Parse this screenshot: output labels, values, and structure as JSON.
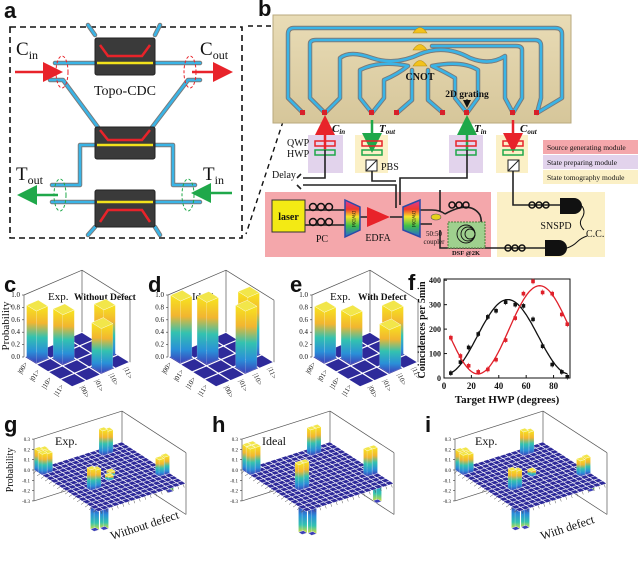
{
  "panels": {
    "a": {
      "label": "a",
      "device_label": "Topo-CDC",
      "c_in": {
        "main": "C",
        "sub": "in"
      },
      "c_out": {
        "main": "C",
        "sub": "out"
      },
      "t_out": {
        "main": "T",
        "sub": "out"
      },
      "t_in": {
        "main": "T",
        "sub": "in"
      },
      "colors": {
        "control": "#e8232a",
        "target": "#1fa84a",
        "waveguide": "#3ab4e6"
      }
    },
    "b": {
      "label": "b",
      "cnot_label": "CNOT",
      "grating_label": "2D grating",
      "ports": [
        {
          "main": "C",
          "sub": "in"
        },
        {
          "main": "T",
          "sub": "out"
        },
        {
          "main": "T",
          "sub": "in"
        },
        {
          "main": "C",
          "sub": "out"
        }
      ],
      "qwp": "QWP",
      "hwp": "HWP",
      "pbs": "PBS",
      "delay": "Delay",
      "laser": "laser",
      "pc": "PC",
      "dwdm": "DWDM",
      "edfa": "EDFA",
      "coupler": "50:50\ncoupler",
      "coupler_l1": "50:50",
      "coupler_l2": "coupler",
      "dsf": "DSF @2K",
      "snspd": "SNSPD",
      "cc": "C.C.",
      "legend": [
        {
          "label": "Source generating module",
          "color": "#f4a7ab"
        },
        {
          "label": "State preparing module",
          "color": "#e2d3ec"
        },
        {
          "label": "State tomography module",
          "color": "#fbf0c6"
        }
      ]
    },
    "c": {
      "label": "c",
      "tag": "Exp.",
      "subtitle": "Without Defect"
    },
    "d": {
      "label": "d",
      "tag": "Ideal"
    },
    "e": {
      "label": "e",
      "tag": "Exp.",
      "subtitle": "With Defect"
    },
    "f": {
      "label": "f"
    },
    "g": {
      "label": "g",
      "tag": "Exp.",
      "subtitle": "Without defect"
    },
    "h": {
      "label": "h",
      "tag": "Ideal"
    },
    "i": {
      "label": "i",
      "tag": "Exp.",
      "subtitle": "With defect"
    }
  },
  "chart_data": [
    {
      "panel": "c",
      "type": "bar3d",
      "zlabel": "Probability",
      "zlim": [
        0,
        1.0
      ],
      "zticks": [
        "0.0",
        "0.2",
        "0.4",
        "0.6",
        "0.8",
        "1.0"
      ],
      "row_labels": [
        "|00>",
        "|01>",
        "|10>",
        "|11>"
      ],
      "col_labels": [
        "|00>",
        "|01>",
        "|10>",
        "|11>"
      ],
      "values": [
        [
          0.84,
          0.02,
          0.01,
          0.02
        ],
        [
          0.02,
          0.8,
          0.02,
          0.01
        ],
        [
          0.01,
          0.02,
          0.03,
          0.8
        ],
        [
          0.02,
          0.01,
          0.72,
          0.03
        ]
      ]
    },
    {
      "panel": "d",
      "type": "bar3d",
      "zlim": [
        0,
        1.0
      ],
      "zticks": [
        "0.0",
        "0.2",
        "0.4",
        "0.6",
        "0.8",
        "1.0"
      ],
      "row_labels": [
        "|00>",
        "|01>",
        "|10>",
        "|11>"
      ],
      "col_labels": [
        "|00>",
        "|01>",
        "|10>",
        "|11>"
      ],
      "values": [
        [
          1,
          0,
          0,
          0
        ],
        [
          0,
          1,
          0,
          0
        ],
        [
          0,
          0,
          0,
          1
        ],
        [
          0,
          0,
          1,
          0
        ]
      ]
    },
    {
      "panel": "e",
      "type": "bar3d",
      "zlim": [
        0,
        1.0
      ],
      "zticks": [
        "0.0",
        "0.2",
        "0.4",
        "0.6",
        "0.8",
        "1.0"
      ],
      "row_labels": [
        "|00>",
        "|01>",
        "|10>",
        "|11>"
      ],
      "col_labels": [
        "|00>",
        "|01>",
        "|10>",
        "|11>"
      ],
      "values": [
        [
          0.82,
          0.03,
          0.02,
          0.02
        ],
        [
          0.03,
          0.78,
          0.02,
          0.02
        ],
        [
          0.02,
          0.02,
          0.04,
          0.78
        ],
        [
          0.02,
          0.02,
          0.7,
          0.04
        ]
      ]
    },
    {
      "panel": "f",
      "type": "scatter",
      "xlabel": "Target HWP (degrees)",
      "ylabel": "Coincidences per 5min",
      "xlim": [
        0,
        92
      ],
      "ylim": [
        0,
        405
      ],
      "xticks": [
        0,
        20,
        40,
        60,
        80
      ],
      "yticks": [
        0,
        100,
        200,
        300,
        400
      ],
      "grid": false,
      "series": [
        {
          "color": "#111111",
          "x": [
            5,
            12,
            18,
            25,
            32,
            38,
            45,
            52,
            58,
            65,
            72,
            79,
            86,
            90
          ],
          "y": [
            20,
            65,
            125,
            180,
            250,
            275,
            310,
            300,
            295,
            240,
            130,
            55,
            25,
            5
          ],
          "yerr": 12
        },
        {
          "color": "#e0202a",
          "x": [
            5,
            12,
            18,
            25,
            32,
            38,
            45,
            52,
            58,
            65,
            72,
            79,
            86,
            90
          ],
          "y": [
            165,
            90,
            50,
            25,
            35,
            75,
            155,
            245,
            345,
            395,
            350,
            345,
            260,
            220
          ],
          "yerr": 12
        }
      ]
    },
    {
      "panel": "g",
      "type": "bar3d",
      "size": 16,
      "zlabel": "Probability",
      "zlim": [
        -0.3,
        0.3
      ],
      "zticks": [
        "0.3",
        "0.2",
        "0.1",
        "0.0",
        "-0.1",
        "-0.2",
        "-0.3"
      ],
      "entries": [
        [
          0,
          0,
          0.21
        ],
        [
          0,
          1,
          0.2
        ],
        [
          1,
          0,
          0.2
        ],
        [
          1,
          1,
          0.19
        ],
        [
          1,
          11,
          0.24
        ],
        [
          1,
          12,
          0.22
        ],
        [
          9,
          3,
          0.2
        ],
        [
          9,
          4,
          0.18
        ],
        [
          11,
          14,
          0.16
        ],
        [
          11,
          15,
          0.17
        ],
        [
          12,
          15,
          -0.15
        ],
        [
          14,
          0,
          -0.22
        ],
        [
          15,
          1,
          -0.2
        ],
        [
          7,
          8,
          0.04
        ],
        [
          8,
          7,
          0.04
        ]
      ]
    },
    {
      "panel": "h",
      "type": "bar3d",
      "size": 16,
      "zlim": [
        -0.3,
        0.3
      ],
      "zticks": [
        "0.3",
        "0.2",
        "0.1",
        "0.0",
        "-0.1",
        "-0.2",
        "-0.3"
      ],
      "entries": [
        [
          0,
          0,
          0.25
        ],
        [
          0,
          1,
          0.25
        ],
        [
          1,
          0,
          0.25
        ],
        [
          1,
          1,
          0.25
        ],
        [
          1,
          11,
          0.25
        ],
        [
          1,
          12,
          0.25
        ],
        [
          9,
          3,
          0.25
        ],
        [
          9,
          4,
          0.25
        ],
        [
          11,
          14,
          0.25
        ],
        [
          11,
          15,
          0.25
        ],
        [
          12,
          15,
          -0.25
        ],
        [
          14,
          0,
          -0.25
        ],
        [
          15,
          1,
          -0.25
        ]
      ]
    },
    {
      "panel": "i",
      "type": "bar3d",
      "size": 16,
      "zlim": [
        -0.3,
        0.3
      ],
      "zticks": [
        "0.3",
        "0.2",
        "0.1",
        "0.0",
        "-0.1",
        "-0.2",
        "-0.3"
      ],
      "entries": [
        [
          0,
          0,
          0.2
        ],
        [
          0,
          1,
          0.19
        ],
        [
          1,
          0,
          0.19
        ],
        [
          1,
          1,
          0.18
        ],
        [
          1,
          11,
          0.23
        ],
        [
          1,
          12,
          0.21
        ],
        [
          9,
          3,
          0.19
        ],
        [
          9,
          4,
          0.17
        ],
        [
          11,
          14,
          0.15
        ],
        [
          11,
          15,
          0.16
        ],
        [
          12,
          15,
          -0.14
        ],
        [
          14,
          0,
          -0.21
        ],
        [
          15,
          1,
          -0.19
        ],
        [
          7,
          8,
          0.05
        ]
      ]
    }
  ]
}
